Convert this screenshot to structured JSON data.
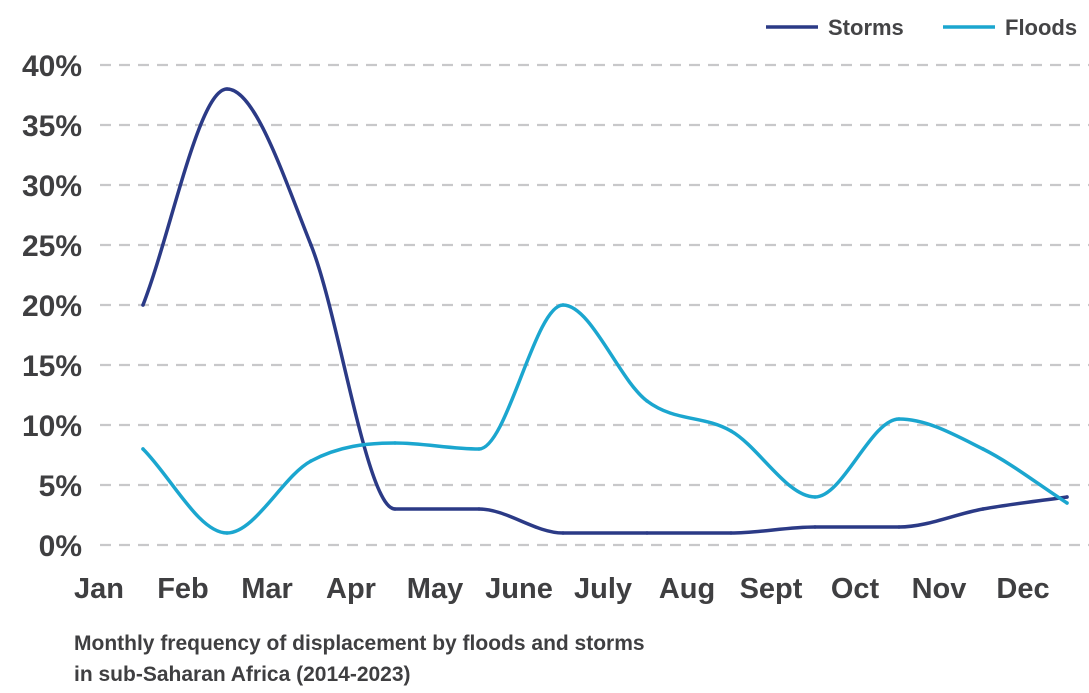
{
  "caption": {
    "line1": "Monthly frequency of displacement by floods and storms",
    "line2": "in sub-Saharan Africa (2014-2023)"
  },
  "chart_data": {
    "type": "line",
    "x": [
      "Jan",
      "Feb",
      "Mar",
      "Apr",
      "May",
      "June",
      "July",
      "Aug",
      "Sept",
      "Oct",
      "Nov",
      "Dec"
    ],
    "y_ticks": [
      "0%",
      "5%",
      "10%",
      "15%",
      "20%",
      "25%",
      "30%",
      "35%",
      "40%"
    ],
    "ylim": [
      0,
      40
    ],
    "y_unit": "%",
    "grid": true,
    "legend_position": "top-right",
    "series": [
      {
        "name": "Storms",
        "color": "#2b3a86",
        "values": [
          20,
          38,
          25,
          3,
          3,
          1,
          1,
          1,
          1.5,
          1.5,
          3,
          4
        ]
      },
      {
        "name": "Floods",
        "color": "#1ba6cf",
        "values": [
          8,
          1,
          7,
          8.5,
          8,
          20,
          12,
          9.5,
          4,
          10.5,
          8,
          3.5
        ]
      }
    ]
  }
}
